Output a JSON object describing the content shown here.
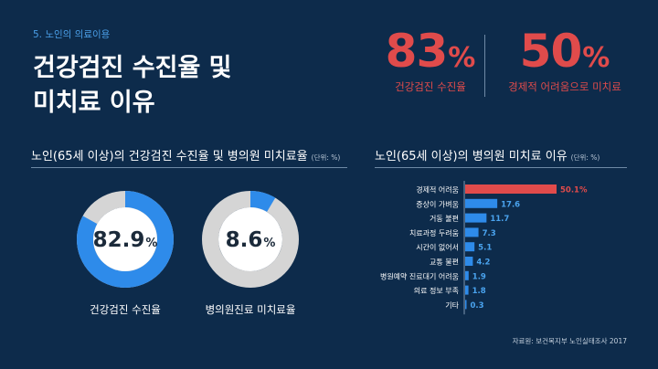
{
  "header": {
    "section_tag": "5. 노인의 의료이용",
    "title_line1": "건강검진 수진율 및",
    "title_line2": "미치료 이유"
  },
  "highlights": [
    {
      "value": "83",
      "unit": "%",
      "label": "건강검진 수진율"
    },
    {
      "value": "50",
      "unit": "%",
      "label": "경제적 어려움으로 미치료"
    }
  ],
  "colors": {
    "background": "#0d2b4b",
    "accent_blue": "#2e8bea",
    "accent_red": "#e04b4b",
    "ring_gray": "#d5d5d5",
    "ring_center": "#ffffff",
    "label_text": "#ffffff",
    "value_text": "#4aa3ee"
  },
  "chart_data": [
    {
      "type": "pie",
      "title": "노인(65세 이상)의 건강검진 수진율 및 병의원 미치료율",
      "unit_note": "(단위: %)",
      "charts": [
        {
          "label": "건강검진 수진율",
          "value": 82.9,
          "display": "82.9",
          "unit": "%"
        },
        {
          "label": "병의원진료 미치료율",
          "value": 8.6,
          "display": "8.6",
          "unit": "%"
        }
      ]
    },
    {
      "type": "bar",
      "orientation": "horizontal",
      "title": "노인(65세 이상)의 병의원 미치료 이유",
      "unit_note": "(단위: %)",
      "categories": [
        "경제적 어려움",
        "증상이 가벼움",
        "거동 불편",
        "치료과정 두려움",
        "시간이 없어서",
        "교통 불편",
        "병원예약 진료대기 어려움",
        "의료 정보 부족",
        "기타"
      ],
      "values": [
        50.1,
        17.6,
        11.7,
        7.3,
        5.1,
        4.2,
        1.9,
        1.8,
        0.3
      ],
      "value_labels": [
        "50.1%",
        "17.6",
        "11.7",
        "7.3",
        "5.1",
        "4.2",
        "1.9",
        "1.8",
        "0.3"
      ],
      "highlight_index": 0,
      "xlim": [
        0,
        50.1
      ]
    }
  ],
  "source": "자료원: 보건복지부 노인실태조사 2017"
}
